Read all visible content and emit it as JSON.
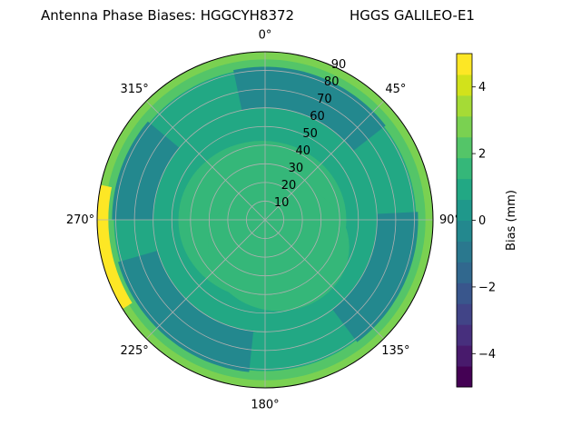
{
  "chart_data": {
    "type": "heatmap",
    "projection": "polar",
    "title_left": "Antenna Phase Biases: HGGCYH8372",
    "title_right": "HGGS GALILEO-E1",
    "azimuth_labels": [
      "0°",
      "45°",
      "90°",
      "135°",
      "180°",
      "225°",
      "270°",
      "315°"
    ],
    "radial_ticks": [
      "10",
      "20",
      "30",
      "40",
      "50",
      "60",
      "70",
      "80",
      "90"
    ],
    "radial_max": 90,
    "grid": true,
    "colorbar": {
      "label": "Bias (mm)",
      "min": -5,
      "max": 5,
      "tick_values": [
        -4,
        -2,
        0,
        2,
        4
      ],
      "tick_labels": [
        "−4",
        "−2",
        "0",
        "2",
        "4"
      ],
      "levels": [
        -5,
        -4.5,
        -4,
        -3.5,
        -3,
        -2.5,
        -2,
        -1.5,
        -1,
        -0.5,
        0,
        0.5,
        1,
        1.5,
        2,
        2.5,
        3,
        3.5,
        4,
        4.5,
        5
      ],
      "colors": [
        "#440154",
        "#481a6c",
        "#472f7d",
        "#414487",
        "#39568c",
        "#31688e",
        "#2a788e",
        "#23888e",
        "#1f988b",
        "#22a884",
        "#35b779",
        "#54c568",
        "#7ad151",
        "#a5db36",
        "#d2e21b",
        "#fde725"
      ]
    },
    "regions": [
      {
        "zenith_range": [
          0,
          40
        ],
        "azimuth_range": [
          0,
          360
        ],
        "bias_mm": 0.3
      },
      {
        "zenith_range": [
          40,
          75
        ],
        "azimuth_range": [
          0,
          360
        ],
        "bias_mm": -0.4
      },
      {
        "zenith_range": [
          60,
          82
        ],
        "azimuth": 20,
        "bias_mm": -1.3
      },
      {
        "zenith_range": [
          60,
          82
        ],
        "azimuth": 115,
        "bias_mm": -1.3
      },
      {
        "zenith_range": [
          60,
          82
        ],
        "azimuth": 220,
        "bias_mm": -1.3
      },
      {
        "zenith_range": [
          60,
          82
        ],
        "azimuth": 290,
        "bias_mm": -1.3
      },
      {
        "zenith_range": [
          80,
          90
        ],
        "azimuth_range": [
          0,
          360
        ],
        "bias_mm": 1.4
      },
      {
        "zenith_range": [
          86,
          90
        ],
        "azimuth": 240,
        "bias_mm": 4.6
      }
    ]
  }
}
